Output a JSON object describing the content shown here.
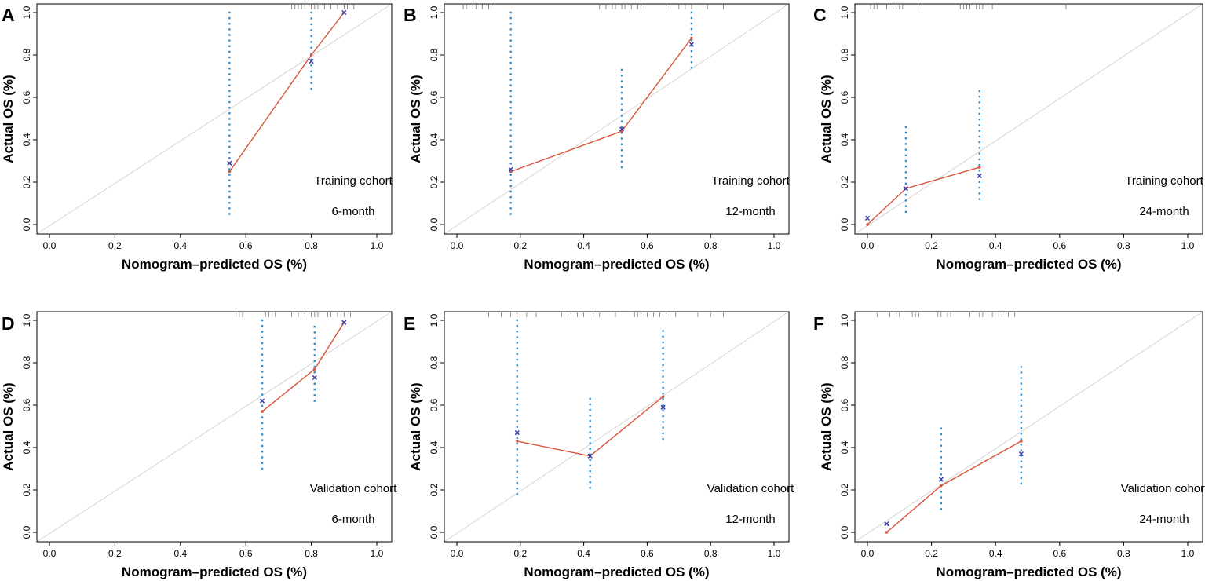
{
  "colors": {
    "observed_line": "#d8553a",
    "ci_dots": "#2a8fd0",
    "bias_marker": "#3a3fa8",
    "reference_line": "#d4d4d4",
    "rug": "#777777"
  },
  "chart_data": [
    {
      "panel": "A",
      "type": "line",
      "xlabel": "Nomogram–predicted OS (%)",
      "ylabel": "Actual OS (%)",
      "xlim": [
        0,
        1
      ],
      "ylim": [
        0,
        1
      ],
      "xticks": [
        "0.0",
        "0.2",
        "0.4",
        "0.6",
        "0.8",
        "1.0"
      ],
      "yticks": [
        "0.0",
        "0.2",
        "0.4",
        "0.6",
        "0.8",
        "1.0"
      ],
      "annotations": [
        "Training cohort",
        "6-month"
      ],
      "points": [
        {
          "x": 0.55,
          "y": 0.25,
          "ci": [
            0.05,
            1.0
          ],
          "corrected": 0.29
        },
        {
          "x": 0.8,
          "y": 0.8,
          "ci": [
            0.64,
            1.0
          ],
          "corrected": 0.77
        },
        {
          "x": 0.9,
          "y": 1.0,
          "ci": [
            1.0,
            1.0
          ],
          "corrected": 1.0
        }
      ],
      "rug": [
        0.74,
        0.75,
        0.76,
        0.77,
        0.78,
        0.8,
        0.81,
        0.82,
        0.84,
        0.86,
        0.88,
        0.9,
        0.91,
        0.93
      ]
    },
    {
      "panel": "B",
      "type": "line",
      "xlabel": "Nomogram–predicted OS (%)",
      "ylabel": "Actual OS (%)",
      "xlim": [
        0,
        1
      ],
      "ylim": [
        0,
        1
      ],
      "xticks": [
        "0.0",
        "0.2",
        "0.4",
        "0.6",
        "0.8",
        "1.0"
      ],
      "yticks": [
        "0.0",
        "0.2",
        "0.4",
        "0.6",
        "0.8",
        "1.0"
      ],
      "annotations": [
        "Training cohort",
        "12-month"
      ],
      "points": [
        {
          "x": 0.17,
          "y": 0.25,
          "ci": [
            0.05,
            1.0
          ],
          "corrected": 0.26
        },
        {
          "x": 0.52,
          "y": 0.44,
          "ci": [
            0.27,
            0.73
          ],
          "corrected": 0.45
        },
        {
          "x": 0.74,
          "y": 0.88,
          "ci": [
            0.74,
            1.0
          ],
          "corrected": 0.85
        }
      ],
      "rug": [
        0.02,
        0.03,
        0.05,
        0.06,
        0.08,
        0.1,
        0.12,
        0.45,
        0.47,
        0.49,
        0.5,
        0.52,
        0.53,
        0.55,
        0.57,
        0.58,
        0.66,
        0.7,
        0.72,
        0.74,
        0.79,
        0.84
      ]
    },
    {
      "panel": "C",
      "type": "line",
      "xlabel": "Nomogram–predicted OS (%)",
      "ylabel": "Actual OS (%)",
      "xlim": [
        0,
        1
      ],
      "ylim": [
        0,
        1
      ],
      "xticks": [
        "0.0",
        "0.2",
        "0.4",
        "0.6",
        "0.8",
        "1.0"
      ],
      "yticks": [
        "0.0",
        "0.2",
        "0.4",
        "0.6",
        "0.8",
        "1.0"
      ],
      "annotations": [
        "Training cohort",
        "24-month"
      ],
      "points": [
        {
          "x": 0.0,
          "y": 0.0,
          "ci": [
            0.0,
            0.0
          ],
          "corrected": 0.03
        },
        {
          "x": 0.12,
          "y": 0.17,
          "ci": [
            0.06,
            0.46
          ],
          "corrected": 0.17
        },
        {
          "x": 0.35,
          "y": 0.27,
          "ci": [
            0.12,
            0.63
          ],
          "corrected": 0.23
        }
      ],
      "rug": [
        0.01,
        0.02,
        0.03,
        0.06,
        0.08,
        0.09,
        0.1,
        0.11,
        0.17,
        0.29,
        0.3,
        0.31,
        0.32,
        0.34,
        0.35,
        0.36,
        0.39,
        0.62
      ]
    },
    {
      "panel": "D",
      "type": "line",
      "xlabel": "Nomogram–predicted OS (%)",
      "ylabel": "Actual OS (%)",
      "xlim": [
        0,
        1
      ],
      "ylim": [
        0,
        1
      ],
      "xticks": [
        "0.0",
        "0.2",
        "0.4",
        "0.6",
        "0.8",
        "1.0"
      ],
      "yticks": [
        "0.0",
        "0.2",
        "0.4",
        "0.6",
        "0.8",
        "1.0"
      ],
      "annotations": [
        "Validation cohort",
        "6-month"
      ],
      "points": [
        {
          "x": 0.65,
          "y": 0.57,
          "ci": [
            0.3,
            1.0
          ],
          "corrected": 0.62
        },
        {
          "x": 0.81,
          "y": 0.77,
          "ci": [
            0.62,
            0.97
          ],
          "corrected": 0.73
        },
        {
          "x": 0.9,
          "y": 0.99,
          "ci": [
            0.99,
            0.99
          ],
          "corrected": 0.99
        }
      ],
      "rug": [
        0.57,
        0.58,
        0.59,
        0.66,
        0.67,
        0.69,
        0.74,
        0.76,
        0.78,
        0.8,
        0.81,
        0.82,
        0.85,
        0.86,
        0.88,
        0.9,
        0.92
      ]
    },
    {
      "panel": "E",
      "type": "line",
      "xlabel": "Nomogram–predicted OS (%)",
      "ylabel": "Actual OS (%)",
      "xlim": [
        0,
        1
      ],
      "ylim": [
        0,
        1
      ],
      "xticks": [
        "0.0",
        "0.2",
        "0.4",
        "0.6",
        "0.8",
        "1.0"
      ],
      "yticks": [
        "0.0",
        "0.2",
        "0.4",
        "0.6",
        "0.8",
        "1.0"
      ],
      "annotations": [
        "Validation cohort",
        "12-month"
      ],
      "points": [
        {
          "x": 0.19,
          "y": 0.43,
          "ci": [
            0.18,
            1.0
          ],
          "corrected": 0.47
        },
        {
          "x": 0.42,
          "y": 0.36,
          "ci": [
            0.21,
            0.63
          ],
          "corrected": 0.36
        },
        {
          "x": 0.65,
          "y": 0.64,
          "ci": [
            0.44,
            0.95
          ],
          "corrected": 0.59
        }
      ],
      "rug": [
        0.1,
        0.14,
        0.17,
        0.19,
        0.22,
        0.25,
        0.33,
        0.36,
        0.38,
        0.4,
        0.43,
        0.45,
        0.5,
        0.56,
        0.57,
        0.58,
        0.6,
        0.62,
        0.64,
        0.66,
        0.69,
        0.76,
        0.8,
        0.84
      ]
    },
    {
      "panel": "F",
      "type": "line",
      "xlabel": "Nomogram–predicted OS (%)",
      "ylabel": "Actual OS (%)",
      "xlim": [
        0,
        1
      ],
      "ylim": [
        0,
        1
      ],
      "xticks": [
        "0.0",
        "0.2",
        "0.4",
        "0.6",
        "0.8",
        "1.0"
      ],
      "yticks": [
        "0.0",
        "0.2",
        "0.4",
        "0.6",
        "0.8",
        "1.0"
      ],
      "annotations": [
        "Validation cohort",
        "24-month"
      ],
      "points": [
        {
          "x": 0.06,
          "y": 0.0,
          "ci": [
            0.0,
            0.0
          ],
          "corrected": 0.04
        },
        {
          "x": 0.23,
          "y": 0.22,
          "ci": [
            0.11,
            0.49
          ],
          "corrected": 0.25
        },
        {
          "x": 0.48,
          "y": 0.43,
          "ci": [
            0.23,
            0.78
          ],
          "corrected": 0.37
        }
      ],
      "rug": [
        0.03,
        0.07,
        0.09,
        0.1,
        0.14,
        0.15,
        0.16,
        0.22,
        0.23,
        0.25,
        0.26,
        0.32,
        0.35,
        0.36,
        0.39,
        0.41,
        0.42,
        0.44,
        0.46
      ]
    }
  ]
}
